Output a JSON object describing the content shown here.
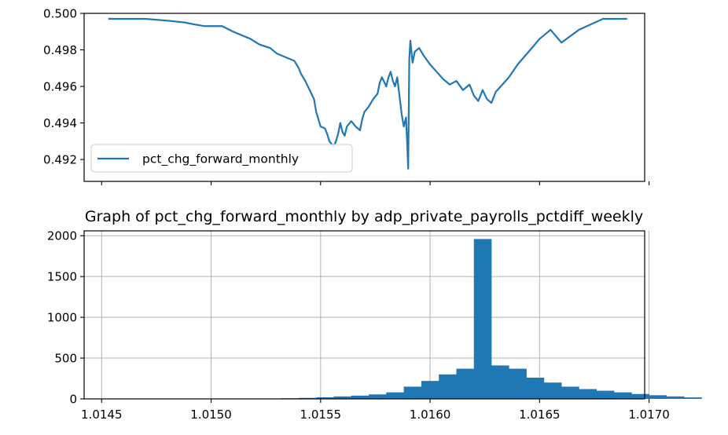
{
  "chart_data": [
    {
      "type": "line",
      "title": "",
      "xlabel": "",
      "ylabel": "",
      "ylim": [
        0.4908,
        0.5
      ],
      "yticks": [
        "0.492",
        "0.494",
        "0.496",
        "0.498",
        "0.500"
      ],
      "grid": false,
      "legend_placement": "lower-left",
      "series": [
        {
          "name": "pct_chg_forward_monthly",
          "color": "#1f77b4",
          "x": [
            1.01453,
            1.0146,
            1.0147,
            1.0148,
            1.01488,
            1.01492,
            1.01497,
            1.01505,
            1.0151,
            1.01518,
            1.01522,
            1.01527,
            1.0153,
            1.01534,
            1.01538,
            1.0154,
            1.01541,
            1.01543,
            1.01545,
            1.01547,
            1.01548,
            1.01549,
            1.0155,
            1.01552,
            1.01553,
            1.01554,
            1.01556,
            1.01557,
            1.01558,
            1.01559,
            1.0156,
            1.01561,
            1.01562,
            1.01564,
            1.01566,
            1.01568,
            1.01569,
            1.0157,
            1.01572,
            1.01574,
            1.01576,
            1.01577,
            1.01578,
            1.0158,
            1.01581,
            1.01582,
            1.01583,
            1.01584,
            1.01585,
            1.01586,
            1.01587,
            1.01588,
            1.01589,
            1.015895,
            1.0159,
            1.015905,
            1.01591,
            1.01592,
            1.01593,
            1.01595,
            1.01597,
            1.016,
            1.01603,
            1.01606,
            1.01609,
            1.01612,
            1.01615,
            1.01618,
            1.0162,
            1.01622,
            1.01624,
            1.01626,
            1.01628,
            1.0163,
            1.01633,
            1.01636,
            1.0164,
            1.01645,
            1.0165,
            1.01655,
            1.0166,
            1.01668,
            1.01679,
            1.0169
          ],
          "y": [
            0.4997,
            0.4997,
            0.4997,
            0.4996,
            0.4995,
            0.4994,
            0.4993,
            0.4993,
            0.499,
            0.4986,
            0.4983,
            0.4981,
            0.4978,
            0.4976,
            0.4974,
            0.497,
            0.4967,
            0.4963,
            0.4958,
            0.4953,
            0.4946,
            0.4942,
            0.4938,
            0.4937,
            0.4934,
            0.493,
            0.4927,
            0.493,
            0.4934,
            0.494,
            0.4935,
            0.4933,
            0.4938,
            0.4941,
            0.4938,
            0.4936,
            0.4942,
            0.4946,
            0.4949,
            0.4953,
            0.4956,
            0.4962,
            0.4965,
            0.496,
            0.4965,
            0.4968,
            0.4963,
            0.496,
            0.4965,
            0.4955,
            0.4945,
            0.4938,
            0.4943,
            0.493,
            0.4915,
            0.4975,
            0.4985,
            0.4973,
            0.4979,
            0.4981,
            0.4977,
            0.4972,
            0.4968,
            0.4964,
            0.4961,
            0.4963,
            0.4958,
            0.4961,
            0.4955,
            0.4952,
            0.4958,
            0.4953,
            0.4951,
            0.4957,
            0.4961,
            0.4965,
            0.4972,
            0.4979,
            0.4986,
            0.4991,
            0.4984,
            0.4991,
            0.4997,
            0.4997
          ]
        }
      ]
    },
    {
      "type": "bar",
      "title": "Graph of pct_chg_forward_monthly by adp_private_payrolls_pctdiff_weekly",
      "xlabel": "",
      "ylabel": "",
      "xlim": [
        1.01442,
        1.01698
      ],
      "ylim": [
        0,
        2060
      ],
      "xticks": [
        "1.0145",
        "1.0150",
        "1.0155",
        "1.0160",
        "1.0165",
        "1.0170"
      ],
      "yticks": [
        "0",
        "500",
        "1000",
        "1500",
        "2000"
      ],
      "grid": true,
      "color": "#1f77b4",
      "bin_start": 1.01452,
      "bin_width": 8e-05,
      "values": [
        1,
        1,
        1,
        1,
        1,
        1,
        1,
        2,
        3,
        5,
        8,
        12,
        20,
        30,
        40,
        55,
        80,
        150,
        220,
        300,
        370,
        1960,
        410,
        370,
        260,
        200,
        150,
        120,
        100,
        80,
        60,
        45,
        30,
        18
      ]
    }
  ],
  "legend": {
    "label": "pct_chg_forward_monthly"
  }
}
